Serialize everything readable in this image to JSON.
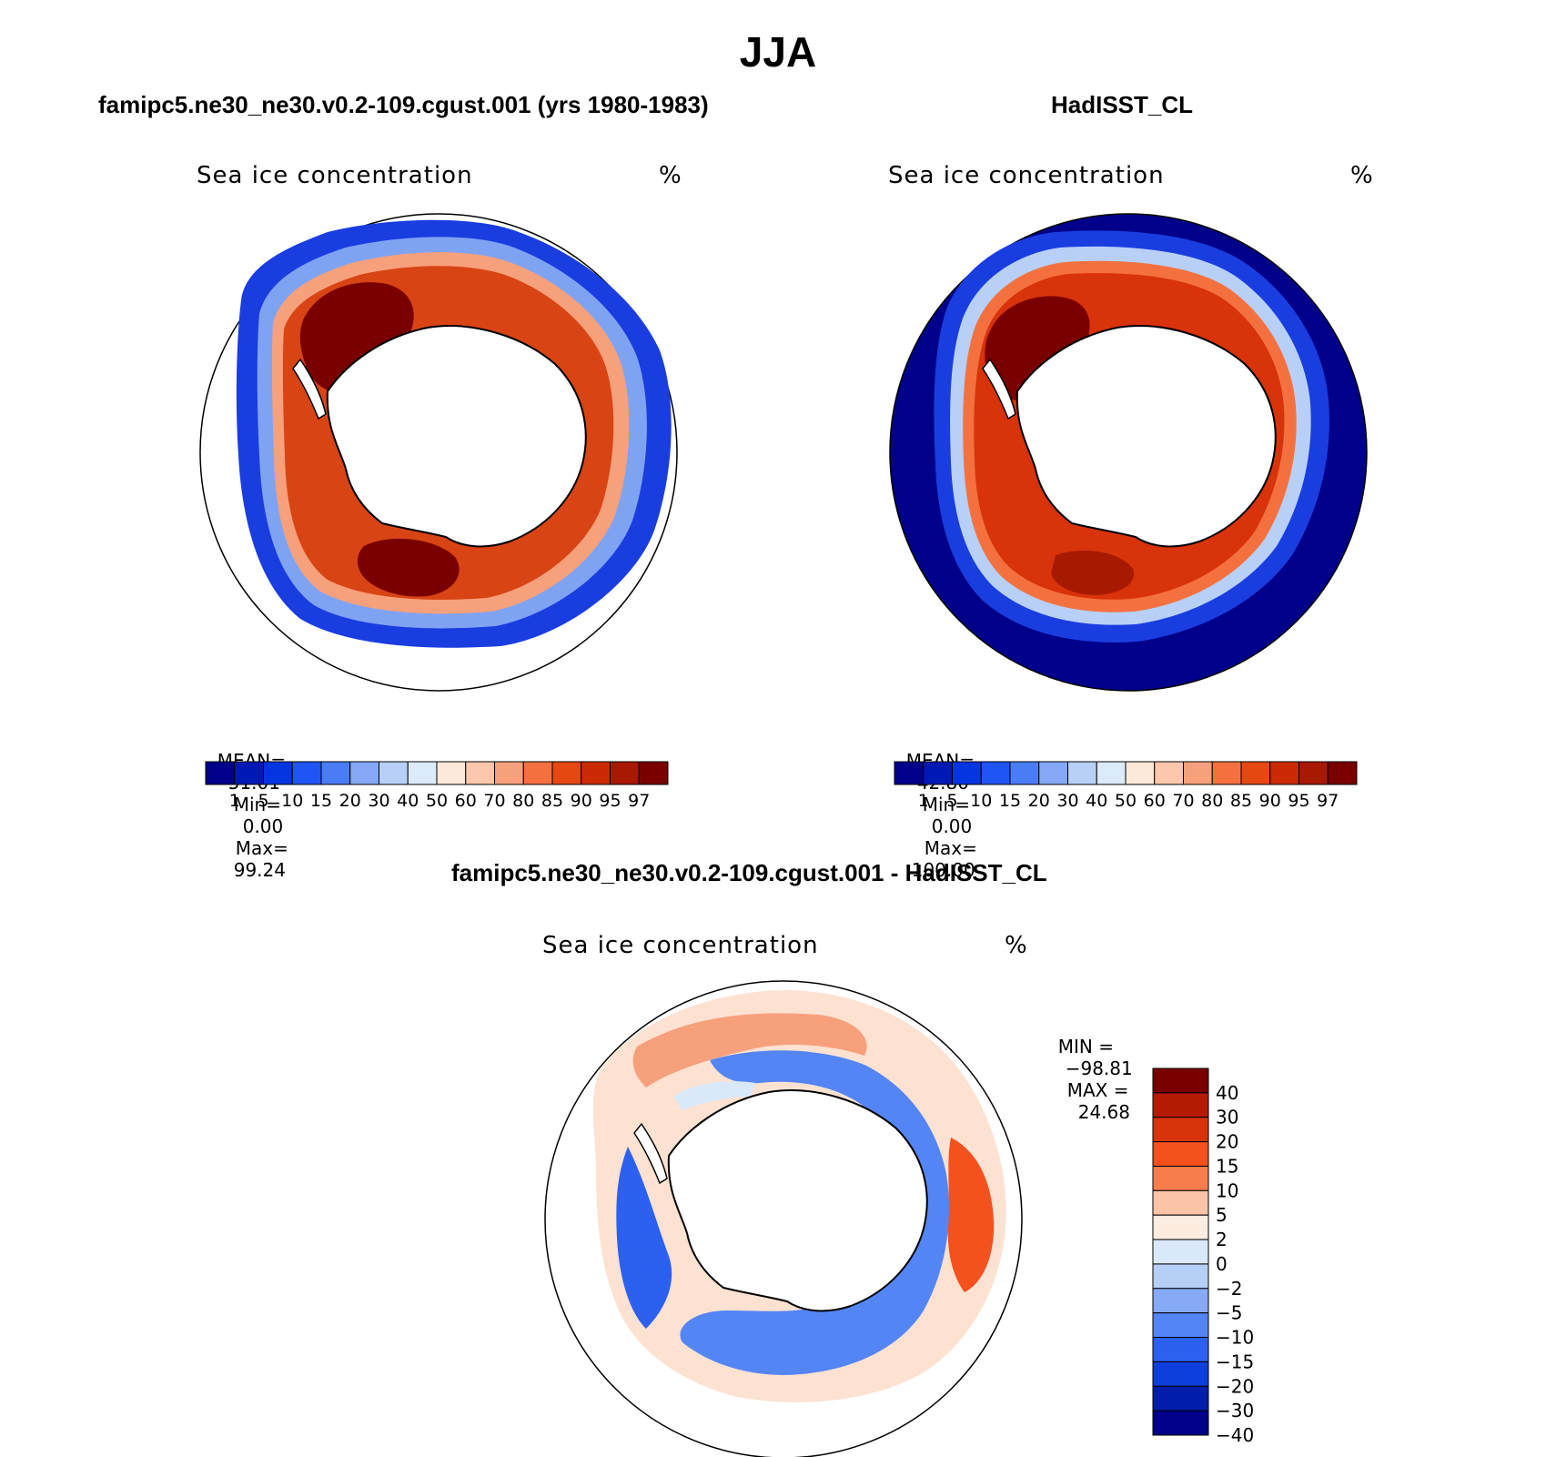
{
  "title": "JJA",
  "panels": [
    {
      "id": "model",
      "title": "famipc5.ne30_ne30.v0.2-109.cgust.001 (yrs 1980-1983)",
      "variable": "Sea ice concentration",
      "units": "%",
      "stats": {
        "mean_label": "MEAN=",
        "mean": "51.01",
        "min_label": "Min=",
        "min": "0.00",
        "max_label": "Max=",
        "max": "99.24"
      }
    },
    {
      "id": "obs",
      "title": "HadISST_CL",
      "variable": "Sea ice concentration",
      "units": "%",
      "stats": {
        "mean_label": "MEAN=",
        "mean": "42.80",
        "min_label": "Min=",
        "min": "0.00",
        "max_label": "Max=",
        "max": "100.00"
      }
    },
    {
      "id": "diff",
      "title": "famipc5.ne30_ne30.v0.2-109.cgust.001 - HadISST_CL",
      "variable": "Sea ice concentration",
      "units": "%",
      "stats": {
        "min_label": "MIN =",
        "min": "−98.81",
        "max_label": "MAX =",
        "max": "24.68"
      }
    }
  ],
  "abs_colorbar": {
    "labels": [
      "1",
      "5",
      "10",
      "15",
      "20",
      "30",
      "40",
      "50",
      "60",
      "70",
      "80",
      "85",
      "90",
      "95",
      "97"
    ],
    "colors": [
      "#00008a",
      "#0019b4",
      "#0535e0",
      "#2055f5",
      "#4a7df5",
      "#84a8f5",
      "#b8d0f8",
      "#dcebfa",
      "#fde9da",
      "#fbc7ad",
      "#f7a07c",
      "#f4713f",
      "#e64813",
      "#cc2a04",
      "#a81902",
      "#7a0000"
    ]
  },
  "diff_colorbar": {
    "labels": [
      "40",
      "30",
      "20",
      "15",
      "10",
      "5",
      "2",
      "0",
      "−2",
      "−5",
      "−10",
      "−15",
      "−20",
      "−30",
      "−40"
    ],
    "colors": [
      "#7a0000",
      "#b51b02",
      "#d8330a",
      "#f4511e",
      "#f87d4c",
      "#fbc4a6",
      "#fdece0",
      "#d9e9fa",
      "#b5cff7",
      "#86aaf5",
      "#5485f5",
      "#2c61f0",
      "#0c3fdc",
      "#001eaa",
      "#00008a"
    ]
  }
}
